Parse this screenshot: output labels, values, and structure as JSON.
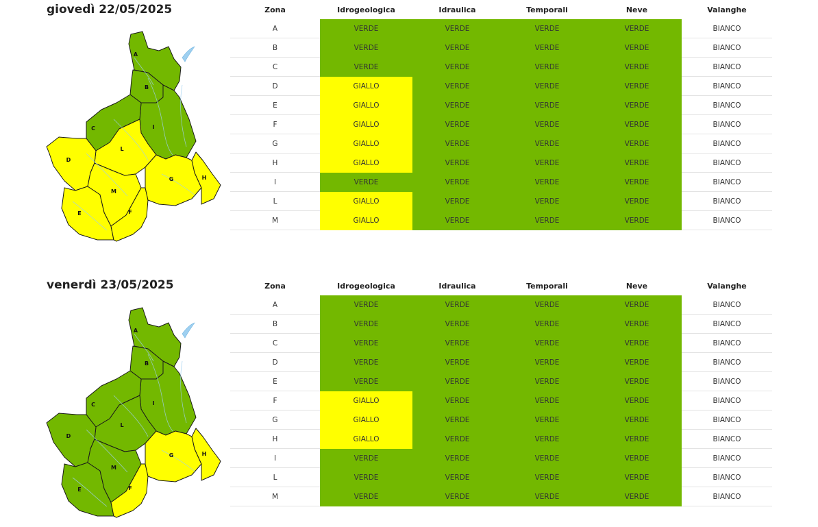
{
  "colors": {
    "verde": "#73b800",
    "giallo": "#ffff00",
    "bianco": "#ffffff",
    "river": "#9fd0f0"
  },
  "columns": [
    "Zona",
    "Idrogeologica",
    "Idraulica",
    "Temporali",
    "Neve",
    "Valanghe"
  ],
  "days": [
    {
      "title": "giovedì 22/05/2025",
      "rows": [
        [
          "A",
          "VERDE",
          "VERDE",
          "VERDE",
          "VERDE",
          "BIANCO"
        ],
        [
          "B",
          "VERDE",
          "VERDE",
          "VERDE",
          "VERDE",
          "BIANCO"
        ],
        [
          "C",
          "VERDE",
          "VERDE",
          "VERDE",
          "VERDE",
          "BIANCO"
        ],
        [
          "D",
          "GIALLO",
          "VERDE",
          "VERDE",
          "VERDE",
          "BIANCO"
        ],
        [
          "E",
          "GIALLO",
          "VERDE",
          "VERDE",
          "VERDE",
          "BIANCO"
        ],
        [
          "F",
          "GIALLO",
          "VERDE",
          "VERDE",
          "VERDE",
          "BIANCO"
        ],
        [
          "G",
          "GIALLO",
          "VERDE",
          "VERDE",
          "VERDE",
          "BIANCO"
        ],
        [
          "H",
          "GIALLO",
          "VERDE",
          "VERDE",
          "VERDE",
          "BIANCO"
        ],
        [
          "I",
          "VERDE",
          "VERDE",
          "VERDE",
          "VERDE",
          "BIANCO"
        ],
        [
          "L",
          "GIALLO",
          "VERDE",
          "VERDE",
          "VERDE",
          "BIANCO"
        ],
        [
          "M",
          "GIALLO",
          "VERDE",
          "VERDE",
          "VERDE",
          "BIANCO"
        ]
      ]
    },
    {
      "title": "venerdì 23/05/2025",
      "rows": [
        [
          "A",
          "VERDE",
          "VERDE",
          "VERDE",
          "VERDE",
          "BIANCO"
        ],
        [
          "B",
          "VERDE",
          "VERDE",
          "VERDE",
          "VERDE",
          "BIANCO"
        ],
        [
          "C",
          "VERDE",
          "VERDE",
          "VERDE",
          "VERDE",
          "BIANCO"
        ],
        [
          "D",
          "VERDE",
          "VERDE",
          "VERDE",
          "VERDE",
          "BIANCO"
        ],
        [
          "E",
          "VERDE",
          "VERDE",
          "VERDE",
          "VERDE",
          "BIANCO"
        ],
        [
          "F",
          "GIALLO",
          "VERDE",
          "VERDE",
          "VERDE",
          "BIANCO"
        ],
        [
          "G",
          "GIALLO",
          "VERDE",
          "VERDE",
          "VERDE",
          "BIANCO"
        ],
        [
          "H",
          "GIALLO",
          "VERDE",
          "VERDE",
          "VERDE",
          "BIANCO"
        ],
        [
          "I",
          "VERDE",
          "VERDE",
          "VERDE",
          "VERDE",
          "BIANCO"
        ],
        [
          "L",
          "VERDE",
          "VERDE",
          "VERDE",
          "VERDE",
          "BIANCO"
        ],
        [
          "M",
          "VERDE",
          "VERDE",
          "VERDE",
          "VERDE",
          "BIANCO"
        ]
      ]
    }
  ]
}
